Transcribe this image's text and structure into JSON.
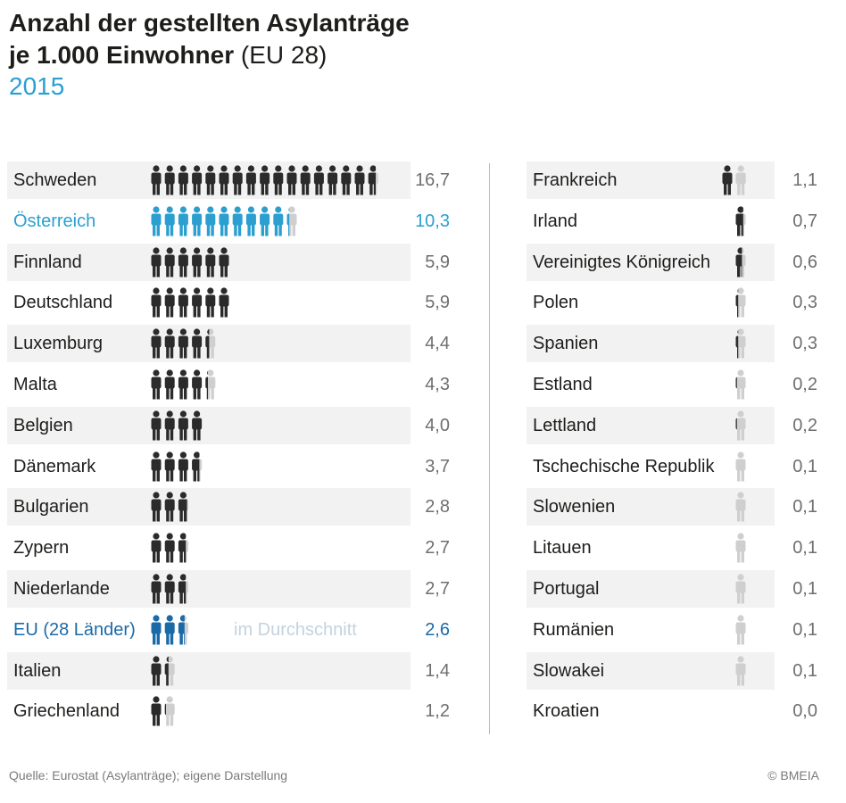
{
  "header": {
    "title_line1": "Anzahl der gestellten Asylanträge",
    "title_line2_bold": "je 1.000 Einwohner",
    "title_line2_light": " (EU 28)",
    "year": "2015"
  },
  "chart_data": {
    "type": "pictogram",
    "title": "Anzahl der gestellten Asylanträge je 1.000 Einwohner (EU 28)",
    "subtitle": "2015",
    "unit_per_icon": 1,
    "colors": {
      "default": "#2b2b2b",
      "austria": "#2a9fd0",
      "eu": "#1b6aa8",
      "remainder": "#cfcfcf"
    },
    "left": [
      {
        "country": "Schweden",
        "value": 16.7,
        "label": "16,7",
        "highlight": ""
      },
      {
        "country": "Österreich",
        "value": 10.3,
        "label": "10,3",
        "highlight": "austria"
      },
      {
        "country": "Finnland",
        "value": 5.9,
        "label": "5,9",
        "highlight": ""
      },
      {
        "country": "Deutschland",
        "value": 5.9,
        "label": "5,9",
        "highlight": ""
      },
      {
        "country": "Luxemburg",
        "value": 4.4,
        "label": "4,4",
        "highlight": ""
      },
      {
        "country": "Malta",
        "value": 4.3,
        "label": "4,3",
        "highlight": ""
      },
      {
        "country": "Belgien",
        "value": 4.0,
        "label": "4,0",
        "highlight": ""
      },
      {
        "country": "Dänemark",
        "value": 3.7,
        "label": "3,7",
        "highlight": ""
      },
      {
        "country": "Bulgarien",
        "value": 2.8,
        "label": "2,8",
        "highlight": ""
      },
      {
        "country": "Zypern",
        "value": 2.7,
        "label": "2,7",
        "highlight": ""
      },
      {
        "country": "Niederlande",
        "value": 2.7,
        "label": "2,7",
        "highlight": ""
      },
      {
        "country": "EU (28 Länder)",
        "value": 2.6,
        "label": "2,6",
        "highlight": "eu",
        "note": "im Durchschnitt"
      },
      {
        "country": "Italien",
        "value": 1.4,
        "label": "1,4",
        "highlight": ""
      },
      {
        "country": "Griechenland",
        "value": 1.2,
        "label": "1,2",
        "highlight": ""
      }
    ],
    "right": [
      {
        "country": "Frankreich",
        "value": 1.1,
        "label": "1,1"
      },
      {
        "country": "Irland",
        "value": 0.7,
        "label": "0,7"
      },
      {
        "country": "Vereinigtes Königreich",
        "value": 0.6,
        "label": "0,6"
      },
      {
        "country": "Polen",
        "value": 0.3,
        "label": "0,3"
      },
      {
        "country": "Spanien",
        "value": 0.3,
        "label": "0,3"
      },
      {
        "country": "Estland",
        "value": 0.2,
        "label": "0,2"
      },
      {
        "country": "Lettland",
        "value": 0.2,
        "label": "0,2"
      },
      {
        "country": "Tschechische Republik",
        "value": 0.1,
        "label": "0,1"
      },
      {
        "country": "Slowenien",
        "value": 0.1,
        "label": "0,1"
      },
      {
        "country": "Litauen",
        "value": 0.1,
        "label": "0,1"
      },
      {
        "country": "Portugal",
        "value": 0.1,
        "label": "0,1"
      },
      {
        "country": "Rumänien",
        "value": 0.1,
        "label": "0,1"
      },
      {
        "country": "Slowakei",
        "value": 0.1,
        "label": "0,1"
      },
      {
        "country": "Kroatien",
        "value": 0.0,
        "label": "0,0"
      }
    ]
  },
  "footer": {
    "source": "Quelle: Eurostat (Asylanträge); eigene Darstellung",
    "copyright": "© BMEIA"
  }
}
